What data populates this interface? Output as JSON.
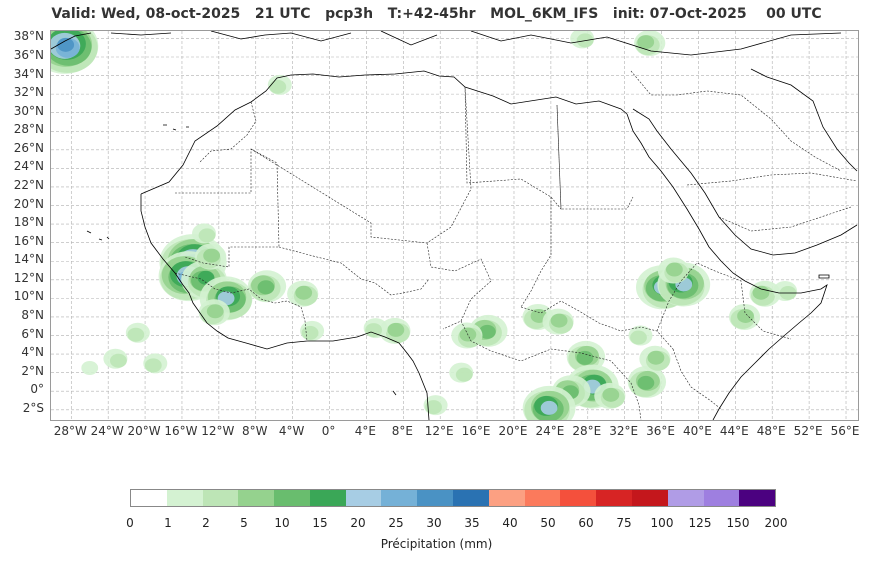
{
  "title": "Valid: Wed, 08-oct-2025   21 UTC   pcp3h   T:+42-45hr   MOL_6KM_IFS   init: 07-Oct-2025    00 UTC",
  "map": {
    "lat_labels": [
      "38°N",
      "36°N",
      "34°N",
      "32°N",
      "30°N",
      "28°N",
      "26°N",
      "24°N",
      "22°N",
      "20°N",
      "18°N",
      "16°N",
      "14°N",
      "12°N",
      "10°N",
      "8°N",
      "6°N",
      "4°N",
      "2°N",
      "0°",
      "2°S"
    ],
    "lon_labels": [
      "28°W",
      "24°W",
      "20°W",
      "16°W",
      "12°W",
      "8°W",
      "4°W",
      "0°",
      "4°E",
      "8°E",
      "12°E",
      "16°E",
      "20°E",
      "24°E",
      "28°E",
      "32°E",
      "36°E",
      "40°E",
      "44°E",
      "48°E",
      "52°E",
      "56°E"
    ],
    "lat_values": [
      38,
      36,
      34,
      32,
      30,
      28,
      26,
      24,
      22,
      20,
      18,
      16,
      14,
      12,
      10,
      8,
      6,
      4,
      2,
      0,
      -2
    ],
    "lon_values": [
      -28,
      -24,
      -20,
      -16,
      -12,
      -8,
      -4,
      0,
      4,
      8,
      12,
      16,
      20,
      24,
      28,
      32,
      36,
      40,
      44,
      48,
      52,
      56
    ],
    "extent": {
      "lon_min": -30.2,
      "lon_max": 57.3,
      "lat_min": -3.1,
      "lat_max": 38.8
    },
    "grid": true,
    "coast_color": "#000000",
    "border_color": "#000000",
    "grid_color": "#b0b0b0"
  },
  "precip_areas": [
    {
      "lon": -29.0,
      "lat": 37.8,
      "level": 3
    },
    {
      "lon": -28.5,
      "lat": 37.2,
      "level": 8
    },
    {
      "lon": -14.8,
      "lat": 13.9,
      "level": 8
    },
    {
      "lon": -15.5,
      "lat": 12.4,
      "level": 7
    },
    {
      "lon": -13.5,
      "lat": 12.0,
      "level": 5
    },
    {
      "lon": -13.0,
      "lat": 14.5,
      "level": 3
    },
    {
      "lon": -11.0,
      "lat": 10.0,
      "level": 6
    },
    {
      "lon": -12.5,
      "lat": 8.5,
      "level": 3
    },
    {
      "lon": -7.0,
      "lat": 11.3,
      "level": 4
    },
    {
      "lon": -2.8,
      "lat": 10.5,
      "level": 3
    },
    {
      "lon": -2.0,
      "lat": 6.5,
      "level": 2
    },
    {
      "lon": 7.3,
      "lat": 6.5,
      "level": 3
    },
    {
      "lon": 5.0,
      "lat": 6.8,
      "level": 2
    },
    {
      "lon": 17.0,
      "lat": 6.5,
      "level": 4
    },
    {
      "lon": 15.0,
      "lat": 6.0,
      "level": 3
    },
    {
      "lon": 22.5,
      "lat": 8.0,
      "level": 3
    },
    {
      "lon": 25.0,
      "lat": 7.5,
      "level": 3
    },
    {
      "lon": 27.8,
      "lat": 3.7,
      "level": 4
    },
    {
      "lon": 33.5,
      "lat": 6.0,
      "level": 2
    },
    {
      "lon": 36.2,
      "lat": 11.2,
      "level": 6
    },
    {
      "lon": 38.3,
      "lat": 11.5,
      "level": 6
    },
    {
      "lon": 37.5,
      "lat": 13.0,
      "level": 3
    },
    {
      "lon": 45.0,
      "lat": 8.0,
      "level": 3
    },
    {
      "lon": 47.0,
      "lat": 10.5,
      "level": 3
    },
    {
      "lon": 49.5,
      "lat": 10.8,
      "level": 2
    },
    {
      "lon": 34.3,
      "lat": 1.0,
      "level": 4
    },
    {
      "lon": 35.5,
      "lat": 3.5,
      "level": 3
    },
    {
      "lon": 28.5,
      "lat": 0.5,
      "level": 6
    },
    {
      "lon": 26.0,
      "lat": 0.0,
      "level": 4
    },
    {
      "lon": 30.5,
      "lat": -0.5,
      "level": 3
    },
    {
      "lon": 23.7,
      "lat": -1.8,
      "level": 6
    },
    {
      "lon": 14.5,
      "lat": 2.0,
      "level": 2
    },
    {
      "lon": 11.5,
      "lat": -1.5,
      "level": 2
    },
    {
      "lon": 34.5,
      "lat": 37.5,
      "level": 3
    },
    {
      "lon": 27.5,
      "lat": 38.0,
      "level": 2
    },
    {
      "lon": -19.0,
      "lat": 3.0,
      "level": 2
    },
    {
      "lon": -23.0,
      "lat": 3.5,
      "level": 2
    },
    {
      "lon": -26.0,
      "lat": 2.5,
      "level": 1
    },
    {
      "lon": -21.0,
      "lat": 6.3,
      "level": 2
    },
    {
      "lon": -13.5,
      "lat": 17.0,
      "level": 2
    },
    {
      "lon": -5.5,
      "lat": 33.0,
      "level": 2
    }
  ],
  "colorbar": {
    "ticks": [
      "0",
      "1",
      "2",
      "5",
      "10",
      "15",
      "20",
      "25",
      "30",
      "35",
      "40",
      "50",
      "60",
      "75",
      "100",
      "125",
      "150",
      "200"
    ],
    "colors": [
      "#ffffff",
      "#d4f2d2",
      "#bde5b6",
      "#95d28e",
      "#69bd6e",
      "#3aa757",
      "#a7cde4",
      "#75b1d7",
      "#4a92c4",
      "#2a72b2",
      "#fca082",
      "#fb7a5c",
      "#f4503c",
      "#d72424",
      "#c4171c",
      "#b09ce6",
      "#9e7fe0",
      "#4b0180"
    ],
    "label": "Précipitation (mm)"
  }
}
